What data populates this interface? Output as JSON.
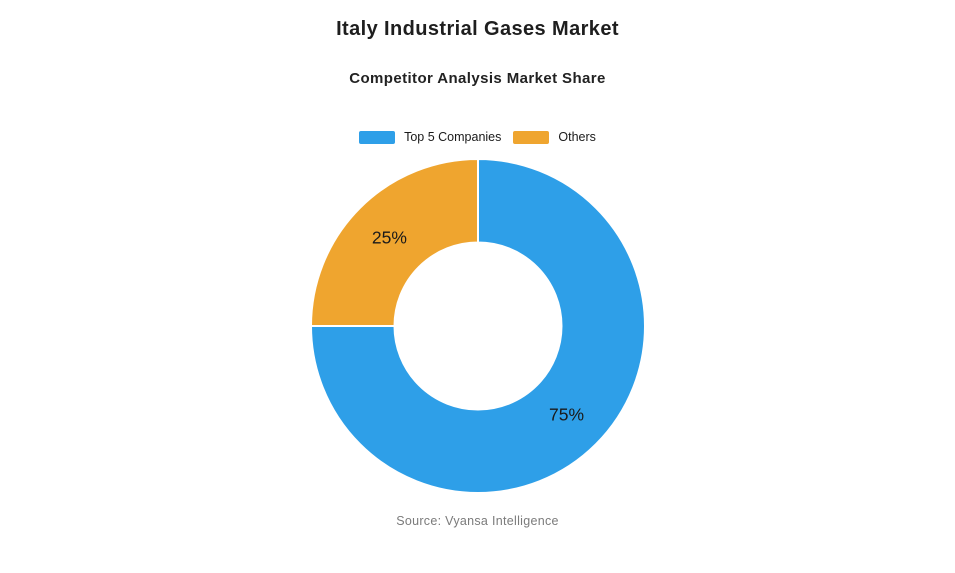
{
  "chart_data": {
    "type": "pie",
    "variant": "donut",
    "title": "Italy Industrial Gases Market",
    "subtitle": "Competitor Analysis Market Share",
    "source": "Source: Vyansa Intelligence",
    "legend_position": "top-center",
    "start_angle_deg": -90,
    "direction": "clockwise",
    "inner_radius_ratio": 0.5,
    "separator_color": "#ffffff",
    "segments": [
      {
        "label": "Top 5 Companies",
        "value": 75,
        "pct_label": "75%",
        "color": "#2E9FE8"
      },
      {
        "label": "Others",
        "value": 25,
        "pct_label": "25%",
        "color": "#EFA52F"
      }
    ]
  }
}
